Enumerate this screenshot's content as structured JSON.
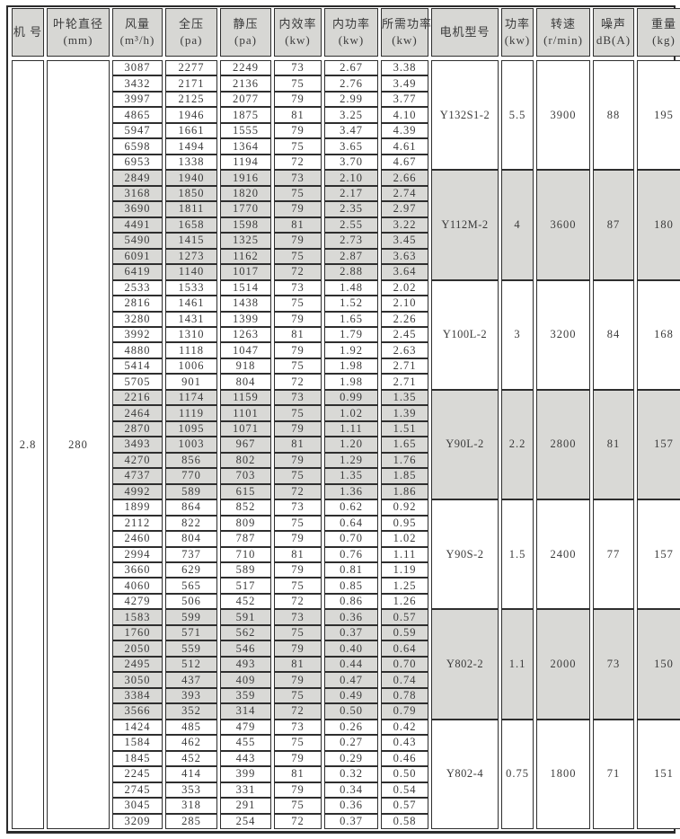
{
  "colors": {
    "header_bg": "#d7d7d4",
    "shaded_row_bg": "#d9d9d6",
    "border": "#2e2e2e",
    "text": "#3a3a3a"
  },
  "table": {
    "headers": [
      {
        "id": "machine-no",
        "line1": "机 号",
        "line2": ""
      },
      {
        "id": "impeller",
        "line1": "叶轮直径",
        "line2": "(mm)"
      },
      {
        "id": "airflow",
        "line1": "风量",
        "line2": "(m³/h)"
      },
      {
        "id": "total-pressure",
        "line1": "全压",
        "line2": "(pa)"
      },
      {
        "id": "static-pressure",
        "line1": "静压",
        "line2": "(pa)"
      },
      {
        "id": "efficiency",
        "line1": "内效率",
        "line2": "(kw)"
      },
      {
        "id": "internal-power",
        "line1": "内功率",
        "line2": "(kw)"
      },
      {
        "id": "required-power",
        "line1": "所需功率",
        "line2": "(kw)"
      },
      {
        "id": "motor-model",
        "line1": "电机型号",
        "line2": ""
      },
      {
        "id": "power",
        "line1": "功率",
        "line2": "(kw)"
      },
      {
        "id": "speed",
        "line1": "转速",
        "line2": "(r/min)"
      },
      {
        "id": "noise",
        "line1": "噪声",
        "line2": "dB(A)"
      },
      {
        "id": "weight",
        "line1": "重量",
        "line2": "(kg)"
      }
    ],
    "machine_no": "2.8",
    "impeller_diameter": "280",
    "groups": [
      {
        "motor_model": "Y132S1-2",
        "power": "5.5",
        "speed": "3900",
        "noise": "88",
        "weight": "195",
        "shaded": false,
        "rows": [
          [
            "3087",
            "2277",
            "2249",
            "73",
            "2.67",
            "3.38"
          ],
          [
            "3432",
            "2171",
            "2136",
            "75",
            "2.76",
            "3.49"
          ],
          [
            "3997",
            "2125",
            "2077",
            "79",
            "2.99",
            "3.77"
          ],
          [
            "4865",
            "1946",
            "1875",
            "81",
            "3.25",
            "4.10"
          ],
          [
            "5947",
            "1661",
            "1555",
            "79",
            "3.47",
            "4.39"
          ],
          [
            "6598",
            "1494",
            "1364",
            "75",
            "3.65",
            "4.61"
          ],
          [
            "6953",
            "1338",
            "1194",
            "72",
            "3.70",
            "4.67"
          ]
        ]
      },
      {
        "motor_model": "Y112M-2",
        "power": "4",
        "speed": "3600",
        "noise": "87",
        "weight": "180",
        "shaded": true,
        "rows": [
          [
            "2849",
            "1940",
            "1916",
            "73",
            "2.10",
            "2.66"
          ],
          [
            "3168",
            "1850",
            "1820",
            "75",
            "2.17",
            "2.74"
          ],
          [
            "3690",
            "1811",
            "1770",
            "79",
            "2.35",
            "2.97"
          ],
          [
            "4491",
            "1658",
            "1598",
            "81",
            "2.55",
            "3.22"
          ],
          [
            "5490",
            "1415",
            "1325",
            "79",
            "2.73",
            "3.45"
          ],
          [
            "6091",
            "1273",
            "1162",
            "75",
            "2.87",
            "3.63"
          ],
          [
            "6419",
            "1140",
            "1017",
            "72",
            "2.88",
            "3.64"
          ]
        ]
      },
      {
        "motor_model": "Y100L-2",
        "power": "3",
        "speed": "3200",
        "noise": "84",
        "weight": "168",
        "shaded": false,
        "rows": [
          [
            "2533",
            "1533",
            "1514",
            "73",
            "1.48",
            "2.02"
          ],
          [
            "2816",
            "1461",
            "1438",
            "75",
            "1.52",
            "2.10"
          ],
          [
            "3280",
            "1431",
            "1399",
            "79",
            "1.65",
            "2.26"
          ],
          [
            "3992",
            "1310",
            "1263",
            "81",
            "1.79",
            "2.45"
          ],
          [
            "4880",
            "1118",
            "1047",
            "79",
            "1.92",
            "2.63"
          ],
          [
            "5414",
            "1006",
            "918",
            "75",
            "1.98",
            "2.71"
          ],
          [
            "5705",
            "901",
            "804",
            "72",
            "1.98",
            "2.71"
          ]
        ]
      },
      {
        "motor_model": "Y90L-2",
        "power": "2.2",
        "speed": "2800",
        "noise": "81",
        "weight": "157",
        "shaded": true,
        "rows": [
          [
            "2216",
            "1174",
            "1159",
            "73",
            "0.99",
            "1.35"
          ],
          [
            "2464",
            "1119",
            "1101",
            "75",
            "1.02",
            "1.39"
          ],
          [
            "2870",
            "1095",
            "1071",
            "79",
            "1.11",
            "1.51"
          ],
          [
            "3493",
            "1003",
            "967",
            "81",
            "1.20",
            "1.65"
          ],
          [
            "4270",
            "856",
            "802",
            "79",
            "1.29",
            "1.76"
          ],
          [
            "4737",
            "770",
            "703",
            "75",
            "1.35",
            "1.85"
          ],
          [
            "4992",
            "589",
            "615",
            "72",
            "1.36",
            "1.86"
          ]
        ]
      },
      {
        "motor_model": "Y90S-2",
        "power": "1.5",
        "speed": "2400",
        "noise": "77",
        "weight": "157",
        "shaded": false,
        "rows": [
          [
            "1899",
            "864",
            "852",
            "73",
            "0.62",
            "0.92"
          ],
          [
            "2112",
            "822",
            "809",
            "75",
            "0.64",
            "0.95"
          ],
          [
            "2460",
            "804",
            "787",
            "79",
            "0.70",
            "1.02"
          ],
          [
            "2994",
            "737",
            "710",
            "81",
            "0.76",
            "1.11"
          ],
          [
            "3660",
            "629",
            "589",
            "79",
            "0.81",
            "1.19"
          ],
          [
            "4060",
            "565",
            "517",
            "75",
            "0.85",
            "1.25"
          ],
          [
            "4279",
            "506",
            "452",
            "72",
            "0.86",
            "1.26"
          ]
        ]
      },
      {
        "motor_model": "Y802-2",
        "power": "1.1",
        "speed": "2000",
        "noise": "73",
        "weight": "150",
        "shaded": true,
        "rows": [
          [
            "1583",
            "599",
            "591",
            "73",
            "0.36",
            "0.57"
          ],
          [
            "1760",
            "571",
            "562",
            "75",
            "0.37",
            "0.59"
          ],
          [
            "2050",
            "559",
            "546",
            "79",
            "0.40",
            "0.64"
          ],
          [
            "2495",
            "512",
            "493",
            "81",
            "0.44",
            "0.70"
          ],
          [
            "3050",
            "437",
            "409",
            "79",
            "0.47",
            "0.74"
          ],
          [
            "3384",
            "393",
            "359",
            "75",
            "0.49",
            "0.78"
          ],
          [
            "3566",
            "352",
            "314",
            "72",
            "0.50",
            "0.79"
          ]
        ]
      },
      {
        "motor_model": "Y802-4",
        "power": "0.75",
        "speed": "1800",
        "noise": "71",
        "weight": "151",
        "shaded": false,
        "rows": [
          [
            "1424",
            "485",
            "479",
            "73",
            "0.26",
            "0.42"
          ],
          [
            "1584",
            "462",
            "455",
            "75",
            "0.27",
            "0.43"
          ],
          [
            "1845",
            "452",
            "443",
            "79",
            "0.29",
            "0.46"
          ],
          [
            "2245",
            "414",
            "399",
            "81",
            "0.32",
            "0.50"
          ],
          [
            "2745",
            "353",
            "331",
            "79",
            "0.34",
            "0.54"
          ],
          [
            "3045",
            "318",
            "291",
            "75",
            "0.36",
            "0.57"
          ],
          [
            "3209",
            "285",
            "254",
            "72",
            "0.37",
            "0.58"
          ]
        ]
      }
    ]
  }
}
